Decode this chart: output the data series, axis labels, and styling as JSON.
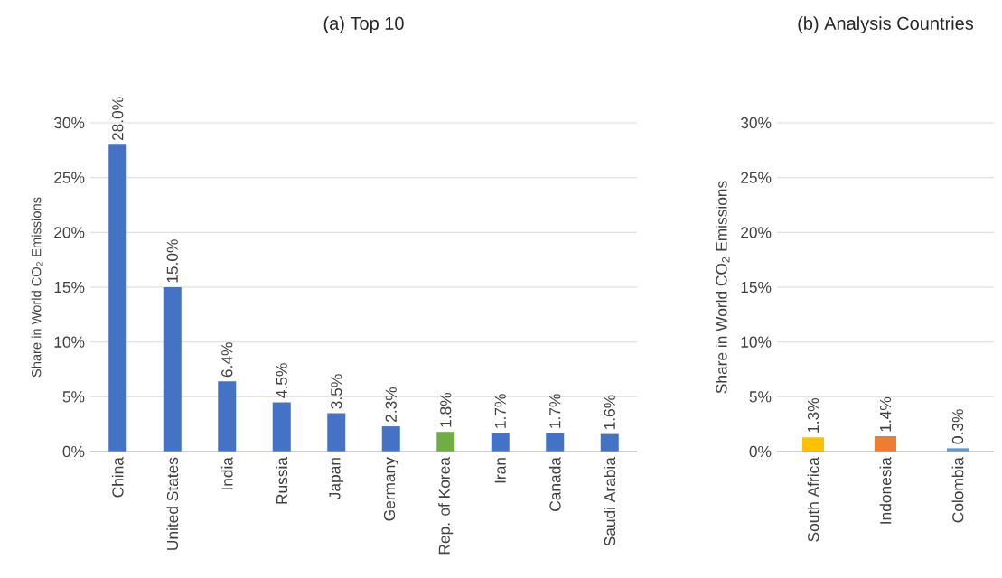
{
  "chart_data": [
    {
      "type": "bar",
      "title": "(a) Top 10",
      "ylabel": "Share in World CO$_{2}$ Emissions",
      "categories": [
        "China",
        "United States",
        "India",
        "Russia",
        "Japan",
        "Germany",
        "Rep. of Korea",
        "Iran",
        "Canada",
        "Saudi Arabia"
      ],
      "values": [
        28.0,
        15.0,
        6.4,
        4.5,
        3.5,
        2.3,
        1.8,
        1.7,
        1.7,
        1.6
      ],
      "value_labels": [
        "28.0%",
        "15.0%",
        "6.4%",
        "4.5%",
        "3.5%",
        "2.3%",
        "1.8%",
        "1.7%",
        "1.7%",
        "1.6%"
      ],
      "colors": [
        "#4472c4",
        "#4472c4",
        "#4472c4",
        "#4472c4",
        "#4472c4",
        "#4472c4",
        "#70ad47",
        "#4472c4",
        "#4472c4",
        "#4472c4"
      ],
      "ylim": [
        0,
        30
      ],
      "yticks": [
        {
          "value": 0,
          "label": "0%"
        },
        {
          "value": 5,
          "label": "5%"
        },
        {
          "value": 10,
          "label": "10%"
        },
        {
          "value": 15,
          "label": "15%"
        },
        {
          "value": 20,
          "label": "20%"
        },
        {
          "value": 25,
          "label": "25%"
        },
        {
          "value": 30,
          "label": "30%"
        }
      ],
      "grid": "y"
    },
    {
      "type": "bar",
      "title": "(b) Analysis Countries",
      "ylabel": "Share in World CO$_{2}$ Emissions",
      "categories": [
        "South Africa",
        "Indonesia",
        "Colombia"
      ],
      "values": [
        1.3,
        1.4,
        0.3
      ],
      "value_labels": [
        "1.3%",
        "1.4%",
        "0.3%"
      ],
      "colors": [
        "#ffc000",
        "#ed7d31",
        "#5b9bd5"
      ],
      "ylim": [
        0,
        30
      ],
      "yticks": [
        {
          "value": 0,
          "label": "0%"
        },
        {
          "value": 5,
          "label": "5%"
        },
        {
          "value": 10,
          "label": "10%"
        },
        {
          "value": 15,
          "label": "15%"
        },
        {
          "value": 20,
          "label": "20%"
        },
        {
          "value": 25,
          "label": "25%"
        },
        {
          "value": 30,
          "label": "30%"
        }
      ],
      "grid": "y"
    }
  ]
}
